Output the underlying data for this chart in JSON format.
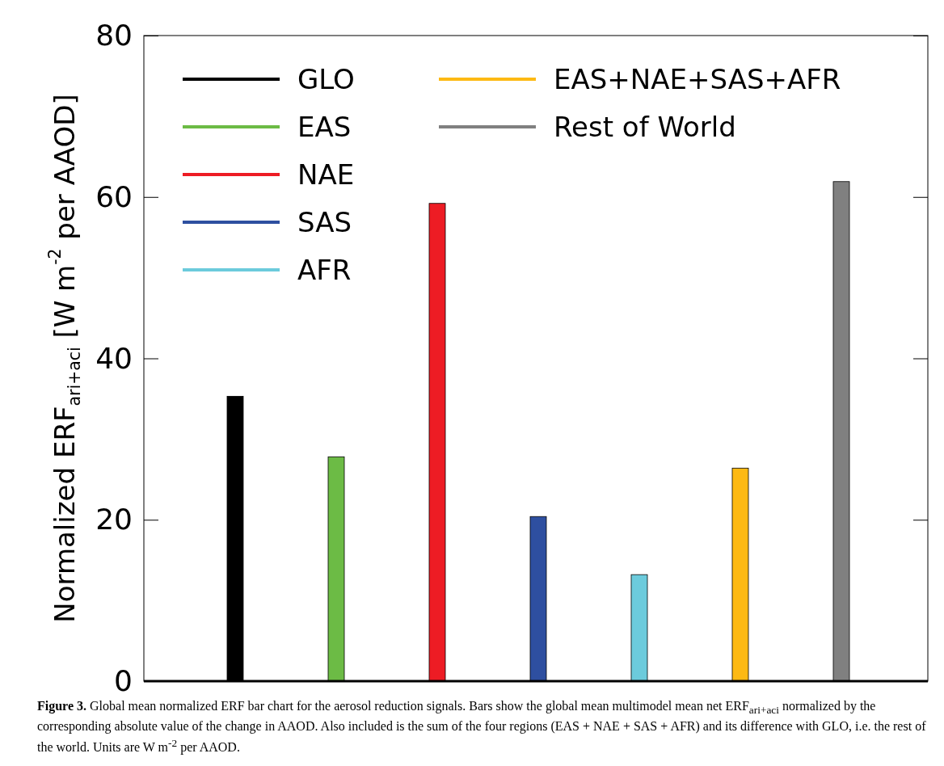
{
  "chart_data": {
    "type": "bar",
    "ylabel": "Normalized ERF$_{ari+aci}$ [W m$^{-2}$ per AAOD]",
    "categories": [
      null,
      null,
      null,
      null,
      null,
      null,
      null
    ],
    "series": [
      {
        "name": "GLO",
        "color": "#000000",
        "values": [
          35.3,
          null,
          null,
          null,
          null,
          null,
          null
        ]
      },
      {
        "name": "EAS",
        "color": "#6cbb45",
        "values": [
          null,
          27.8,
          null,
          null,
          null,
          null,
          null
        ]
      },
      {
        "name": "NAE",
        "color": "#ed1c24",
        "values": [
          null,
          null,
          59.2,
          null,
          null,
          null,
          null
        ]
      },
      {
        "name": "SAS",
        "color": "#2e4fa0",
        "values": [
          null,
          null,
          null,
          20.4,
          null,
          null,
          null
        ]
      },
      {
        "name": "AFR",
        "color": "#6ccbdc",
        "values": [
          null,
          null,
          null,
          null,
          13.2,
          null,
          null
        ]
      },
      {
        "name": "EAS+NAE+SAS+AFR",
        "color": "#fdb913",
        "values": [
          null,
          null,
          null,
          null,
          null,
          26.4,
          null
        ]
      },
      {
        "name": "Rest of World",
        "color": "#808080",
        "values": [
          null,
          null,
          null,
          null,
          null,
          null,
          61.9
        ]
      }
    ],
    "ylim": [
      0,
      80
    ],
    "yticks": [
      0,
      20,
      40,
      60,
      80
    ],
    "tick_labels": "y",
    "grid": false,
    "legend": "top left",
    "annotations": [
      "Figure 3.",
      "Global mean normalized ERF bar chart for the aerosol reduction signals. Bars show the global mean multimodel mean net ERF$_{ari+aci}$ normalized by the corresponding absolute value of the change in AAOD. Also included is the sum of the four regions (EAS + NAE + SAS + AFR) and its difference with GLO, i.e. the rest of the world. Units are W m$^{-2}$ per AAOD."
    ]
  }
}
